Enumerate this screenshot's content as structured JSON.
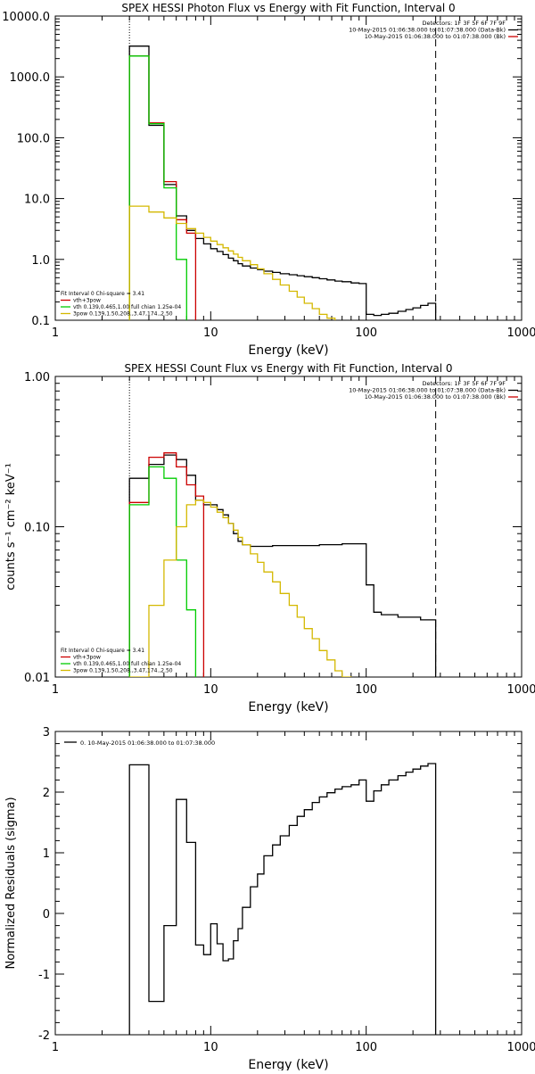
{
  "chart_data": [
    {
      "type": "line",
      "title": "SPEX HESSI Photon Flux vs Energy with Fit Function, Interval 0",
      "xlabel": "Energy (keV)",
      "ylabel": "",
      "xscale": "log",
      "yscale": "log",
      "xlim": [
        1,
        1000
      ],
      "ylim": [
        0.1,
        10000
      ],
      "xticks": [
        "1",
        "10",
        "100",
        "1000"
      ],
      "yticks": [
        "0.1",
        "1.0",
        "10.0",
        "100.0",
        "1000.0",
        "10000.0"
      ],
      "legend_top": [
        {
          "text": "Detectors: 1F 3F 5F 6F 7F 9F"
        },
        {
          "text": "10-May-2015 01:06:38.000 to 01:07:38.000 (Data-Bk)",
          "color": "#000000"
        },
        {
          "text": "10-May-2015 01:06:38.000 to 01:07:38.000 (Bk)",
          "color": "#cc0000"
        }
      ],
      "legend_bottom": [
        {
          "text": "Fit Interval  0    Chi-square = 3.41",
          "color": null
        },
        {
          "text": "vth+3pow",
          "color": "#cc0000"
        },
        {
          "text": "vth 0.139,0.465,1.00  full chian 1.25e-04",
          "color": "#00cc00"
        },
        {
          "text": "3pow 0.139,1.50,208.,3.47,174.,2.50",
          "color": "#d4b800"
        }
      ],
      "vlines": [
        {
          "x": 3,
          "style": "dotted"
        },
        {
          "x": 280,
          "style": "dashed"
        }
      ],
      "series": [
        {
          "name": "Data-Bk",
          "color": "#000000",
          "edges": [
            3,
            4,
            5,
            6,
            7,
            8,
            9,
            10,
            11,
            12,
            13,
            14,
            15,
            16,
            18,
            20,
            22,
            25,
            28,
            32,
            36,
            40,
            45,
            50,
            56,
            63,
            70,
            80,
            90,
            100,
            112,
            125,
            140,
            160,
            180,
            200,
            224,
            250,
            280
          ],
          "values": [
            3200,
            160,
            17,
            5.2,
            3.0,
            2.2,
            1.8,
            1.5,
            1.35,
            1.2,
            1.05,
            0.95,
            0.85,
            0.78,
            0.72,
            0.68,
            0.64,
            0.61,
            0.58,
            0.56,
            0.54,
            0.52,
            0.5,
            0.48,
            0.46,
            0.44,
            0.43,
            0.41,
            0.4,
            0.125,
            0.12,
            0.125,
            0.13,
            0.14,
            0.15,
            0.16,
            0.175,
            0.19
          ]
        },
        {
          "name": "vth+3pow",
          "color": "#cc0000",
          "edges": [
            3,
            4,
            5,
            6,
            7,
            8
          ],
          "values": [
            2200,
            175,
            19,
            4.5,
            2.7
          ]
        },
        {
          "name": "vth",
          "color": "#00cc00",
          "edges": [
            3,
            4,
            5,
            6,
            7
          ],
          "values": [
            2200,
            170,
            15,
            1.0
          ]
        },
        {
          "name": "3pow",
          "color": "#d4b800",
          "edges": [
            3,
            4,
            5,
            6,
            7,
            8,
            9,
            10,
            11,
            12,
            13,
            14,
            15,
            16,
            18,
            20,
            22,
            25,
            28,
            32,
            36,
            40,
            45,
            50,
            56,
            63,
            70
          ],
          "values": [
            7.5,
            6.0,
            4.8,
            3.9,
            3.2,
            2.7,
            2.3,
            2.0,
            1.75,
            1.55,
            1.38,
            1.22,
            1.08,
            0.95,
            0.82,
            0.7,
            0.58,
            0.47,
            0.38,
            0.3,
            0.24,
            0.19,
            0.155,
            0.125,
            0.108,
            0.098
          ]
        }
      ]
    },
    {
      "type": "line",
      "title": "SPEX HESSI Count Flux vs Energy with Fit Function, Interval 0",
      "xlabel": "Energy (keV)",
      "ylabel": "counts s⁻¹ cm⁻² keV⁻¹",
      "xscale": "log",
      "yscale": "log",
      "xlim": [
        1,
        1000
      ],
      "ylim": [
        0.01,
        1
      ],
      "xticks": [
        "1",
        "10",
        "100",
        "1000"
      ],
      "yticks": [
        "0.01",
        "0.10",
        "1.00"
      ],
      "legend_top": [
        {
          "text": "Detectors: 1F 3F 5F 6F 7F 9F"
        },
        {
          "text": "10-May-2015 01:06:38.000 to 01:07:38.000 (Data-Bk)",
          "color": "#000000"
        },
        {
          "text": "10-May-2015 01:06:38.000 to 01:07:38.000 (Bk)",
          "color": "#cc0000"
        }
      ],
      "legend_bottom": [
        {
          "text": "Fit Interval  0    Chi-square = 3.41",
          "color": null
        },
        {
          "text": "vth+3pow",
          "color": "#cc0000"
        },
        {
          "text": "vth 0.139,0.465,1.00  full chian 1.25e-04",
          "color": "#00cc00"
        },
        {
          "text": "3pow 0.139,1.50,208.,3.47,174.,2.50",
          "color": "#d4b800"
        }
      ],
      "vlines": [
        {
          "x": 3,
          "style": "dotted"
        },
        {
          "x": 280,
          "style": "dashed"
        }
      ],
      "series": [
        {
          "name": "Data-Bk",
          "color": "#000000",
          "edges": [
            3,
            4,
            5,
            6,
            7,
            8,
            9,
            10,
            11,
            12,
            13,
            14,
            15,
            16,
            18,
            20,
            22,
            25,
            28,
            32,
            36,
            40,
            45,
            50,
            56,
            63,
            70,
            80,
            90,
            100,
            112,
            125,
            140,
            160,
            180,
            200,
            224,
            250,
            280
          ],
          "values": [
            0.21,
            0.26,
            0.3,
            0.28,
            0.22,
            0.15,
            0.14,
            0.14,
            0.13,
            0.12,
            0.105,
            0.09,
            0.08,
            0.076,
            0.074,
            0.074,
            0.074,
            0.075,
            0.075,
            0.075,
            0.075,
            0.075,
            0.075,
            0.076,
            0.076,
            0.076,
            0.077,
            0.077,
            0.077,
            0.041,
            0.027,
            0.026,
            0.026,
            0.025,
            0.025,
            0.025,
            0.024,
            0.024
          ]
        },
        {
          "name": "vth+3pow",
          "color": "#cc0000",
          "edges": [
            3,
            4,
            5,
            6,
            7,
            8,
            9
          ],
          "values": [
            0.145,
            0.29,
            0.31,
            0.25,
            0.19,
            0.16
          ]
        },
        {
          "name": "vth",
          "color": "#00cc00",
          "edges": [
            3,
            4,
            5,
            6,
            7,
            8
          ],
          "values": [
            0.14,
            0.25,
            0.21,
            0.06,
            0.028
          ]
        },
        {
          "name": "3pow",
          "color": "#d4b800",
          "edges": [
            3,
            4,
            5,
            6,
            7,
            8,
            9,
            10,
            11,
            12,
            13,
            14,
            15,
            16,
            18,
            20,
            22,
            25,
            28,
            32,
            36,
            40,
            45,
            50,
            56,
            63,
            70,
            80,
            90,
            100
          ],
          "values": [
            0.01,
            0.03,
            0.06,
            0.1,
            0.14,
            0.15,
            0.145,
            0.135,
            0.125,
            0.115,
            0.105,
            0.095,
            0.085,
            0.076,
            0.066,
            0.058,
            0.05,
            0.043,
            0.036,
            0.03,
            0.025,
            0.021,
            0.018,
            0.015,
            0.013,
            0.011,
            0.01,
            0.009,
            0.008
          ]
        }
      ]
    },
    {
      "type": "line",
      "title": "",
      "xlabel": "Energy (keV)",
      "ylabel": "Normalized Residuals (sigma)",
      "xscale": "log",
      "yscale": "linear",
      "xlim": [
        1,
        1000
      ],
      "ylim": [
        -2,
        3
      ],
      "xticks": [
        "1",
        "10",
        "100",
        "1000"
      ],
      "yticks": [
        "-2",
        "-1",
        "0",
        "1",
        "2",
        "3"
      ],
      "legend_top": [
        {
          "text": "0. 10-May-2015 01:06:38.000 to 01:07:38.000",
          "color": "#000000"
        }
      ],
      "legend_bottom": [],
      "vlines": [],
      "series": [
        {
          "name": "0. 10-May-2015 01:06:38.000 to 01:07:38.000",
          "color": "#000000",
          "edges": [
            3,
            4,
            5,
            6,
            7,
            8,
            9,
            10,
            11,
            12,
            13,
            14,
            15,
            16,
            18,
            20,
            22,
            25,
            28,
            32,
            36,
            40,
            45,
            50,
            56,
            63,
            70,
            80,
            90,
            100,
            112,
            125,
            140,
            160,
            180,
            200,
            224,
            250,
            280
          ],
          "values": [
            2.45,
            -1.45,
            -0.2,
            1.88,
            1.17,
            -0.52,
            -0.68,
            -0.17,
            -0.5,
            -0.78,
            -0.75,
            -0.45,
            -0.25,
            0.1,
            0.44,
            0.65,
            0.95,
            1.13,
            1.28,
            1.45,
            1.6,
            1.71,
            1.83,
            1.92,
            1.99,
            2.05,
            2.09,
            2.12,
            2.2,
            1.85,
            2.02,
            2.12,
            2.2,
            2.27,
            2.33,
            2.38,
            2.43,
            2.47
          ]
        }
      ]
    }
  ]
}
